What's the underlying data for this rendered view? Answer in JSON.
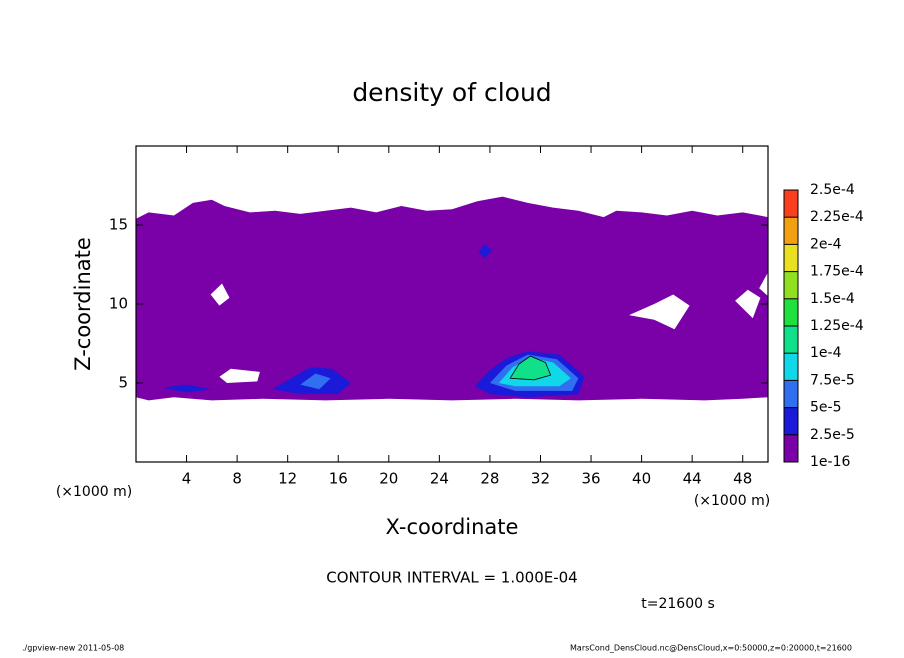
{
  "chart_data": {
    "type": "contour",
    "title": "density of cloud",
    "x_label": "X-coordinate",
    "y_label": "Z-coordinate",
    "x_unit": "(×1000 m)",
    "y_unit": "(×1000 m)",
    "xlim": [
      0,
      50
    ],
    "ylim": [
      0,
      20
    ],
    "xticks": [
      4,
      8,
      12,
      16,
      20,
      24,
      28,
      32,
      36,
      40,
      44,
      48
    ],
    "yticks": [
      5,
      10,
      15
    ],
    "levels": [
      {
        "value": 1e-16,
        "label": "1e-16"
      },
      {
        "value": 2.5e-05,
        "label": "2.5e-5"
      },
      {
        "value": 5e-05,
        "label": "5e-5"
      },
      {
        "value": 7.5e-05,
        "label": "7.5e-5"
      },
      {
        "value": 0.0001,
        "label": "1e-4"
      },
      {
        "value": 0.000125,
        "label": "1.25e-4"
      },
      {
        "value": 0.00015,
        "label": "1.5e-4"
      },
      {
        "value": 0.000175,
        "label": "1.75e-4"
      },
      {
        "value": 0.0002,
        "label": "2e-4"
      },
      {
        "value": 0.000225,
        "label": "2.25e-4"
      },
      {
        "value": 0.00025,
        "label": "2.5e-4"
      }
    ],
    "colors": [
      "#7a00a8",
      "#1a1ad8",
      "#3070f0",
      "#10d8e8",
      "#10e08a",
      "#20e040",
      "#90e020",
      "#e8e020",
      "#f0a010",
      "#f84020",
      "#f8a0a0"
    ],
    "contour_interval": "CONTOUR INTERVAL = 1.000E-04",
    "time_label": "t=21600 s",
    "footer_left": "./gpview-new  2011-05-08",
    "footer_right": "MarsCond_DensCloud.nc@DensCloud,x=0:50000,z=0:20000,t=21600"
  }
}
